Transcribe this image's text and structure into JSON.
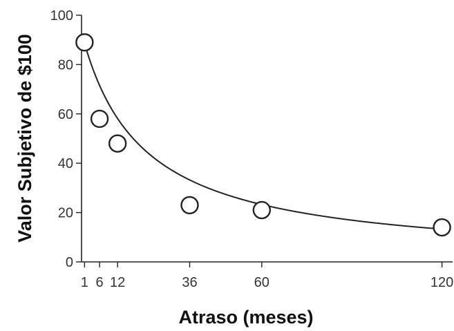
{
  "chart_data": {
    "type": "scatter",
    "xlabel": "Atraso (meses)",
    "ylabel": "Valor Subjetivo de $100",
    "xlim": [
      0,
      124
    ],
    "ylim": [
      0,
      100
    ],
    "x_ticks": [
      1,
      6,
      12,
      36,
      60,
      120
    ],
    "y_ticks": [
      0,
      20,
      40,
      60,
      80,
      100
    ],
    "x_tick_labels": [
      "1",
      "6",
      "12",
      "36",
      "60",
      "120"
    ],
    "y_tick_labels": [
      "0",
      "20",
      "40",
      "60",
      "80",
      "100"
    ],
    "grid": false,
    "legend": "none",
    "series": [
      {
        "x": [
          1,
          6,
          12,
          36,
          60,
          120
        ],
        "y": [
          89,
          58,
          48,
          23,
          21,
          14
        ],
        "marker": "open-circle"
      }
    ],
    "fit_curve": {
      "model": "hyperbolic",
      "A": 93,
      "k": 0.05
    },
    "colors": {
      "ink": "#222222",
      "background": "#ffffff"
    }
  }
}
